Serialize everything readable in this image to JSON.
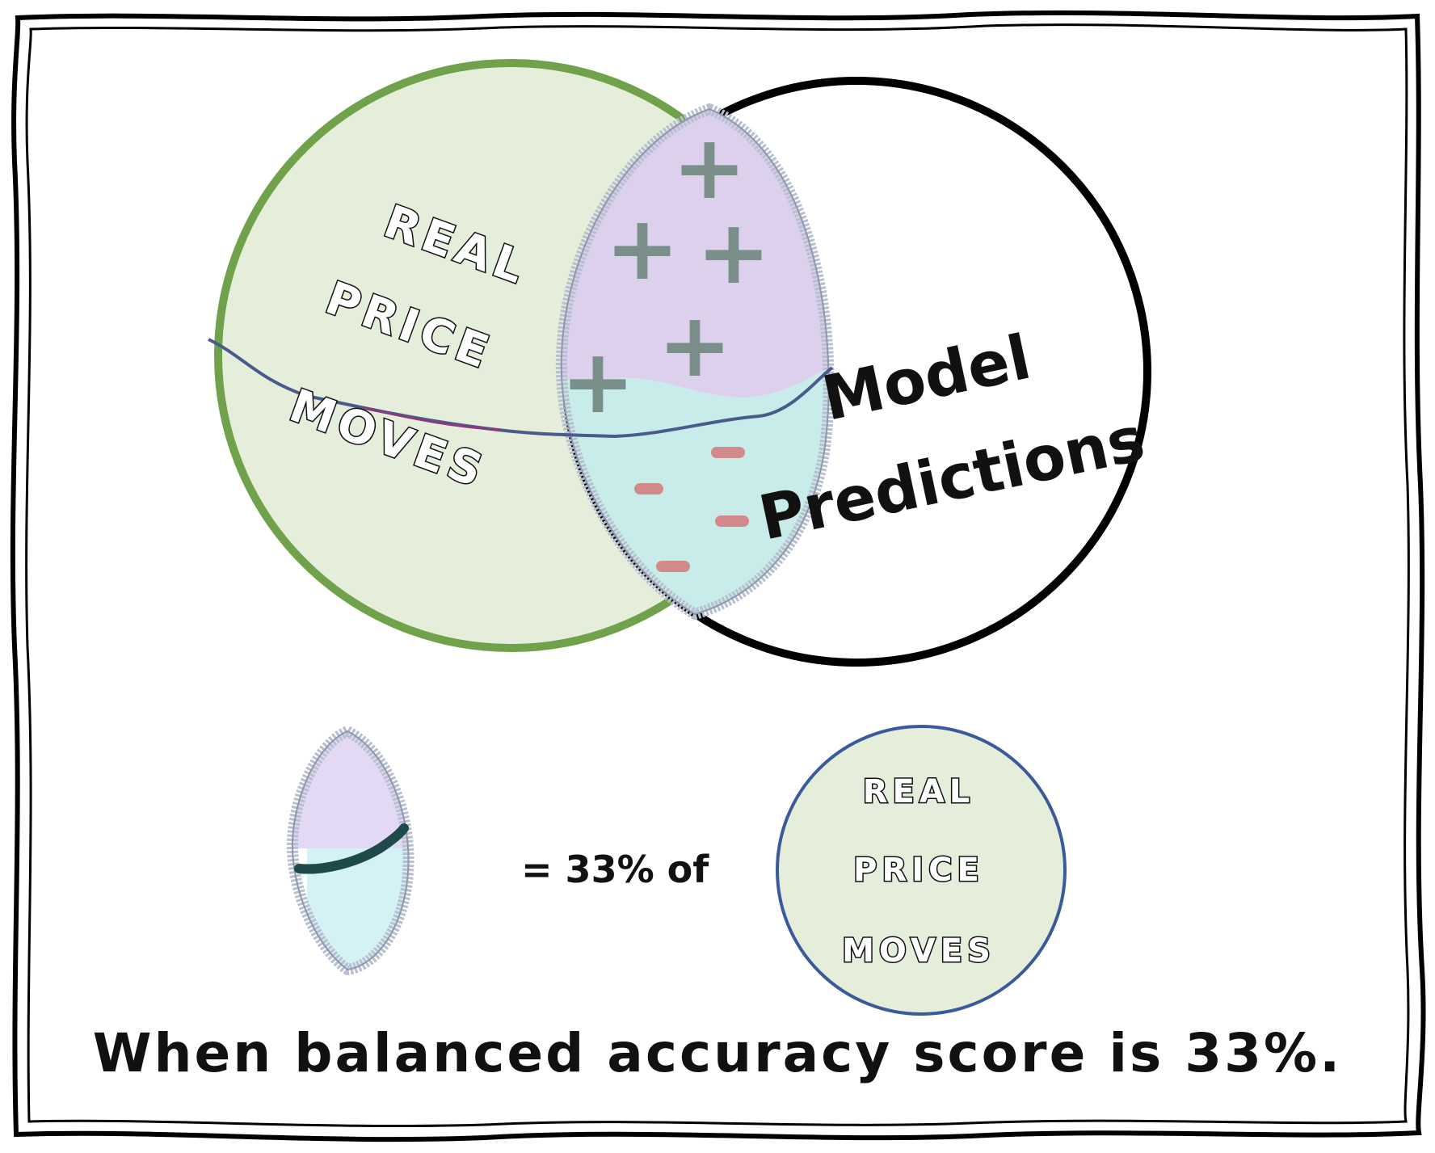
{
  "diagram": {
    "left_circle_label_lines": [
      "REAL",
      "PRICE",
      "MOVES"
    ],
    "right_circle_label_lines": [
      "Model",
      "Predictions"
    ],
    "plus_signs": [
      "+",
      "+",
      "+",
      "+",
      "+"
    ],
    "minus_signs": [
      "-",
      "-",
      "-",
      "-"
    ],
    "colors": {
      "left_circle_fill": "#e5eedb",
      "left_circle_stroke": "#6fa24a",
      "right_circle_stroke": "#000000",
      "overlap_top_fill": "#dcd0ec",
      "overlap_bottom_fill": "#c8ecea",
      "overlap_outline": "#b8bfd0",
      "plus_color": "#7a8f8a",
      "minus_color": "#d28a8a",
      "small_circle_stroke": "#3a5a9a"
    }
  },
  "equation": {
    "equals_text": "= 33% of",
    "small_circle_label_lines": [
      "REAL",
      "PRICE",
      "MOVES"
    ]
  },
  "caption": "When balanced accuracy score is 33%."
}
